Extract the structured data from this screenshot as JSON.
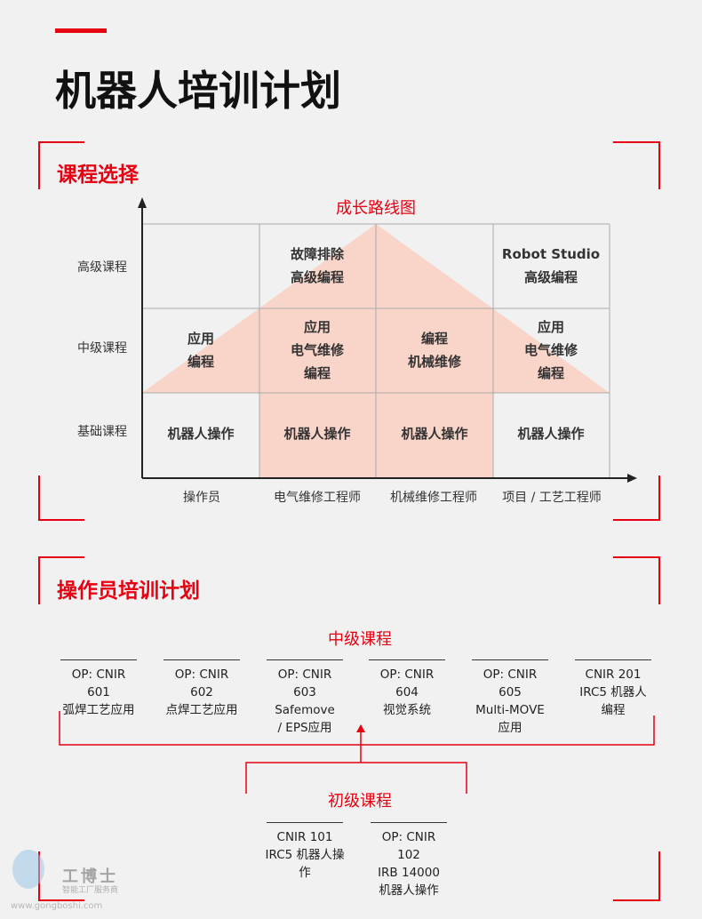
{
  "title": "机器人培训计划",
  "section1": {
    "heading": "课程选择",
    "chart_title": "成长路线图",
    "rows": [
      "高级课程",
      "中级课程",
      "基础课程"
    ],
    "columns": [
      "操作员",
      "电气维修工程师",
      "机械维修工程师",
      "项目 / 工艺工程师"
    ],
    "cells": {
      "advanced": [
        "",
        "故障排除\n高级编程",
        "",
        "Robot Studio\n高级编程"
      ],
      "intermediate": [
        "应用\n编程",
        "应用\n电气维修\n编程",
        "编程\n机械维修",
        "应用\n电气维修\n编程"
      ],
      "basic": [
        "机器人操作",
        "机器人操作",
        "机器人操作",
        "机器人操作"
      ]
    },
    "highlight_color": "#f9d4c8"
  },
  "section2": {
    "heading": "操作员培训计划",
    "intermediate_label": "中级课程",
    "intermediate_courses": [
      {
        "code": "OP: CNIR 601",
        "name": "弧焊工艺应用"
      },
      {
        "code": "OP: CNIR 602",
        "name": "点焊工艺应用"
      },
      {
        "code": "OP: CNIR 603",
        "name": "Safemove\n/ EPS应用"
      },
      {
        "code": "OP: CNIR 604",
        "name": "视觉系统"
      },
      {
        "code": "OP: CNIR 605",
        "name": "Multi-MOVE\n应用"
      },
      {
        "code": "CNIR 201",
        "name": "IRC5 机器人\n编程"
      }
    ],
    "basic_label": "初级课程",
    "basic_courses": [
      {
        "code": "CNIR 101",
        "name": "IRC5 机器人操作"
      },
      {
        "code": "OP: CNIR 102",
        "name": "IRB 14000\n机器人操作"
      }
    ]
  },
  "watermark": {
    "brand": "工博士",
    "tagline": "智能工厂服务商",
    "url": "www.gongboshi.com"
  },
  "accent_color": "#e60012"
}
